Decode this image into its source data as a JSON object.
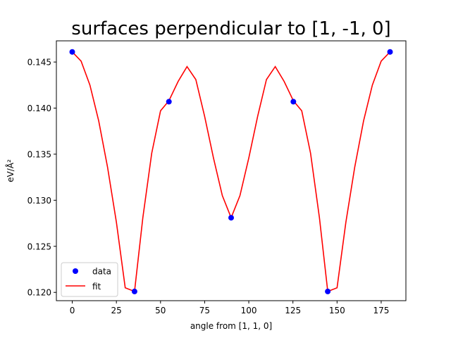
{
  "chart_data": {
    "type": "line",
    "title": "surfaces perpendicular to [1, -1, 0]",
    "xlabel": "angle from [1, 1, 0]",
    "ylabel": "eV/Å²",
    "xlim": [
      -9,
      189
    ],
    "ylim": [
      0.1191,
      0.1473
    ],
    "xticks": [
      0,
      25,
      50,
      75,
      100,
      125,
      150,
      175
    ],
    "yticks": [
      0.12,
      0.125,
      0.13,
      0.135,
      0.14,
      0.145
    ],
    "ytick_labels": [
      "0.120",
      "0.125",
      "0.130",
      "0.135",
      "0.140",
      "0.145"
    ],
    "grid": false,
    "legend_position": "lower-left",
    "series": [
      {
        "name": "data",
        "kind": "markers",
        "color": "#0000ff",
        "x": [
          0,
          35.26,
          54.74,
          90,
          125.26,
          144.74,
          180
        ],
        "y": [
          0.1461,
          0.1201,
          0.1407,
          0.1281,
          0.1407,
          0.1201,
          0.1461
        ]
      },
      {
        "name": "fit",
        "kind": "line",
        "color": "#ff0000",
        "x": [
          0,
          5,
          10,
          15,
          20,
          25,
          30,
          35.26,
          40,
          45,
          50,
          54.74,
          60,
          65,
          70,
          75,
          80,
          85,
          90,
          95,
          100,
          105,
          110,
          115,
          120,
          125.26,
          130,
          135,
          140,
          144.74,
          150,
          155,
          160,
          165,
          170,
          175,
          180
        ],
        "y": [
          0.1461,
          0.1451,
          0.1425,
          0.1386,
          0.1336,
          0.1276,
          0.1205,
          0.1201,
          0.1281,
          0.1351,
          0.1397,
          0.1408,
          0.1429,
          0.1445,
          0.1431,
          0.1391,
          0.1346,
          0.1305,
          0.1281,
          0.1305,
          0.1346,
          0.1391,
          0.1431,
          0.1445,
          0.1429,
          0.1408,
          0.1397,
          0.1351,
          0.1281,
          0.1201,
          0.1205,
          0.1276,
          0.1336,
          0.1386,
          0.1425,
          0.1451,
          0.1461
        ]
      }
    ]
  }
}
